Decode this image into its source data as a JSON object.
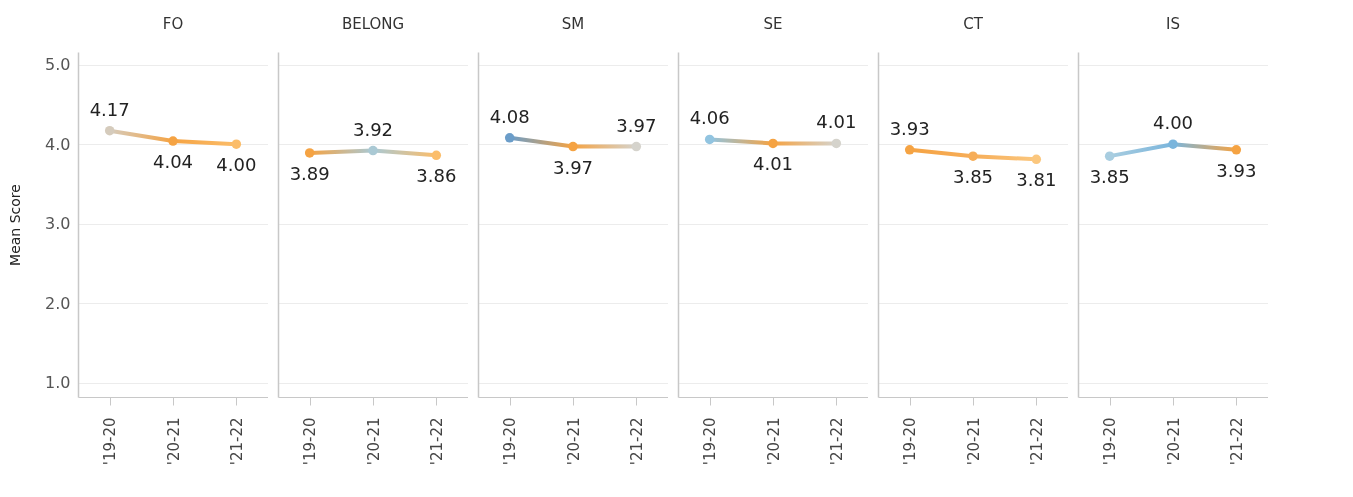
{
  "chart_data": [
    {
      "type": "line",
      "title": "FO",
      "ylabel": "Mean Score",
      "categories": [
        "'19-20",
        "'20-21",
        "'21-22"
      ],
      "values": [
        4.17,
        4.04,
        4.0
      ],
      "value_labels": [
        "4.17",
        "4.04",
        "4.00"
      ],
      "colors": [
        "#d5cbbc",
        "#f5a343",
        "#fbbd6a"
      ],
      "ylim": [
        0.82,
        5.16
      ],
      "yticks": [
        {
          "value": 1,
          "label": "1.0"
        },
        {
          "value": 2,
          "label": "2.0"
        },
        {
          "value": 3,
          "label": "3.0"
        },
        {
          "value": 4,
          "label": "4.0"
        },
        {
          "value": 5,
          "label": "5.0"
        }
      ],
      "grid": "y",
      "marker": "circle"
    },
    {
      "type": "line",
      "title": "BELONG",
      "categories": [
        "'19-20",
        "'20-21",
        "'21-22"
      ],
      "values": [
        3.89,
        3.92,
        3.86
      ],
      "value_labels": [
        "3.89",
        "3.92",
        "3.86"
      ],
      "colors": [
        "#f5a343",
        "#aac9d4",
        "#fbbd6a"
      ],
      "ylim": [
        0.82,
        5.16
      ],
      "yticks": [
        1,
        2,
        3,
        4,
        5
      ],
      "grid": "y",
      "marker": "circle",
      "tick_labels": "x"
    },
    {
      "type": "line",
      "title": "SM",
      "categories": [
        "'19-20",
        "'20-21",
        "'21-22"
      ],
      "values": [
        4.08,
        3.97,
        3.97
      ],
      "value_labels": [
        "4.08",
        "3.97",
        "3.97"
      ],
      "colors": [
        "#6b9dc9",
        "#f5a343",
        "#d5d3cc"
      ],
      "ylim": [
        0.82,
        5.16
      ],
      "yticks": [
        1,
        2,
        3,
        4,
        5
      ],
      "grid": "y",
      "marker": "circle",
      "tick_labels": "x"
    },
    {
      "type": "line",
      "title": "SE",
      "categories": [
        "'19-20",
        "'20-21",
        "'21-22"
      ],
      "values": [
        4.06,
        4.01,
        4.01
      ],
      "value_labels": [
        "4.06",
        "4.01",
        "4.01"
      ],
      "colors": [
        "#92c4e0",
        "#f5a343",
        "#d5d3cc"
      ],
      "ylim": [
        0.82,
        5.16
      ],
      "yticks": [
        1,
        2,
        3,
        4,
        5
      ],
      "grid": "y",
      "marker": "circle",
      "tick_labels": "x"
    },
    {
      "type": "line",
      "title": "CT",
      "categories": [
        "'19-20",
        "'20-21",
        "'21-22"
      ],
      "values": [
        3.93,
        3.85,
        3.81
      ],
      "value_labels": [
        "3.93",
        "3.85",
        "3.81"
      ],
      "colors": [
        "#f5a343",
        "#f6ad58",
        "#fbc77e"
      ],
      "ylim": [
        0.82,
        5.16
      ],
      "yticks": [
        1,
        2,
        3,
        4,
        5
      ],
      "grid": "y",
      "marker": "circle",
      "tick_labels": "x"
    },
    {
      "type": "line",
      "title": "IS",
      "categories": [
        "'19-20",
        "'20-21",
        "'21-22"
      ],
      "values": [
        3.85,
        4.0,
        3.93
      ],
      "value_labels": [
        "3.85",
        "4.00",
        "3.93"
      ],
      "colors": [
        "#a8cde0",
        "#7ab5dc",
        "#f5a343"
      ],
      "ylim": [
        0.82,
        5.16
      ],
      "yticks": [
        1,
        2,
        3,
        4,
        5
      ],
      "grid": "y",
      "marker": "circle",
      "tick_labels": "x"
    }
  ]
}
